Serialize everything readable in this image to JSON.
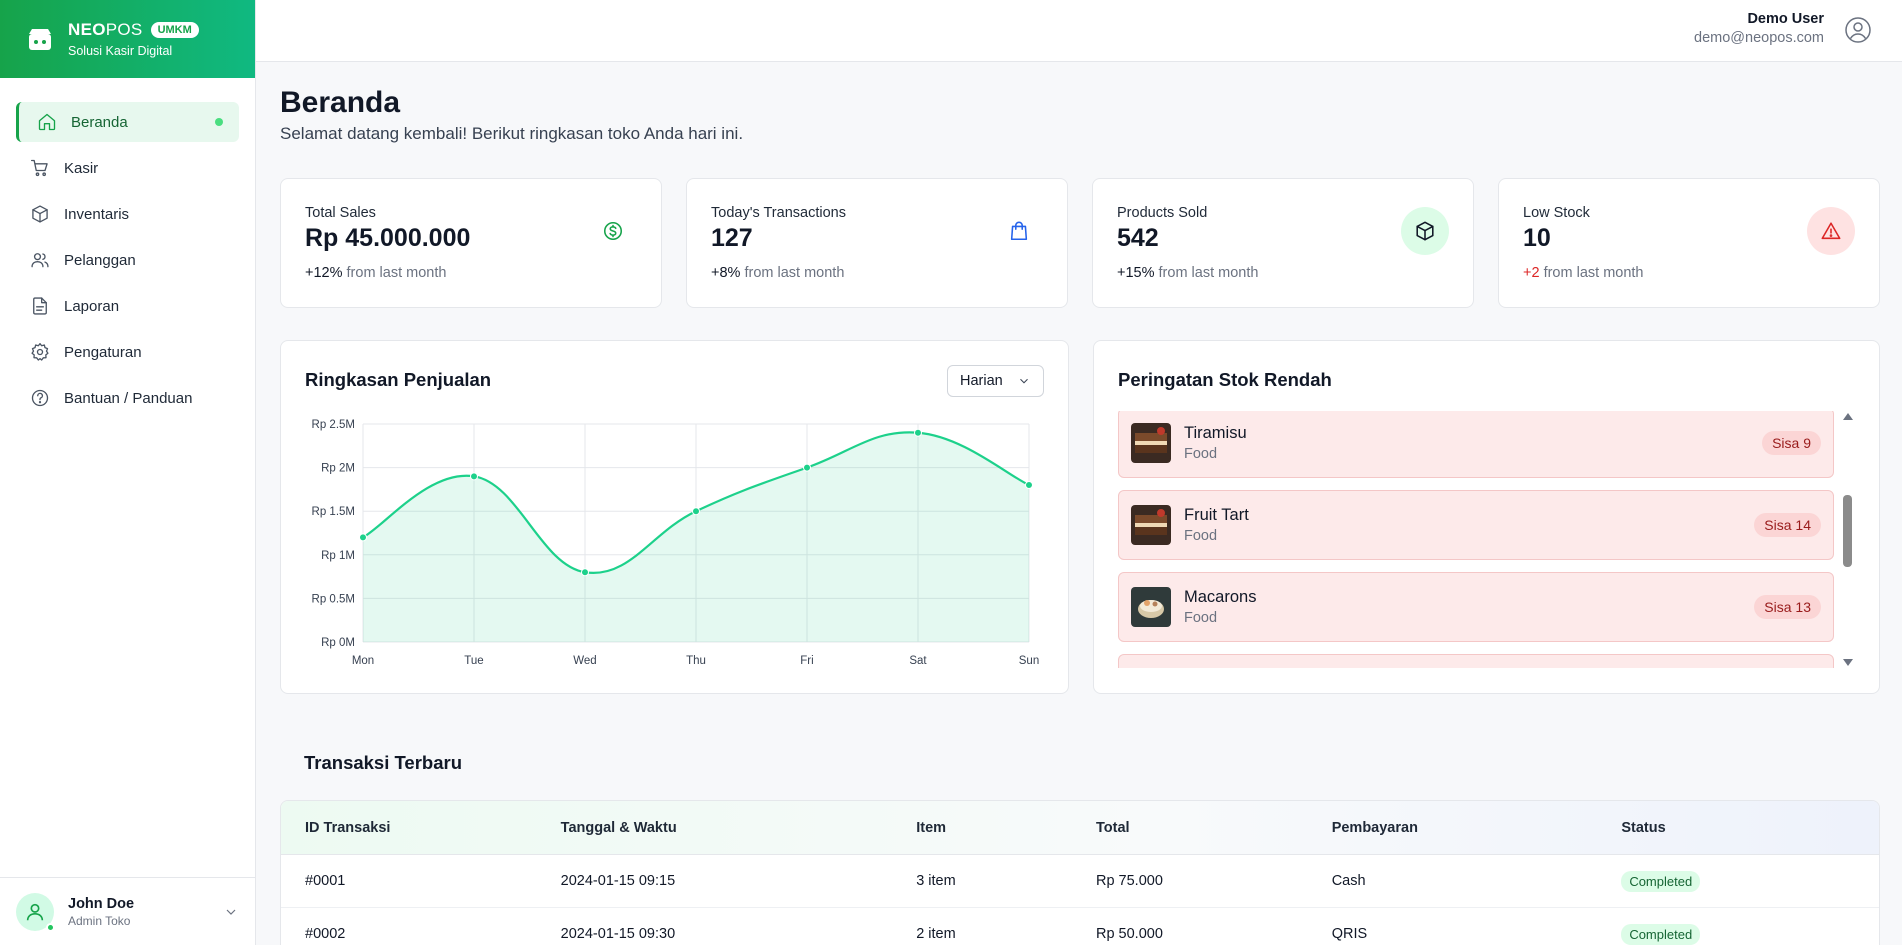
{
  "brand": {
    "name_bold": "NEO",
    "name_light": "POS",
    "badge": "UMKM",
    "tagline": "Solusi Kasir Digital"
  },
  "sidebar": {
    "items": [
      {
        "label": "Beranda",
        "icon": "home-icon",
        "active": true
      },
      {
        "label": "Kasir",
        "icon": "cart-icon"
      },
      {
        "label": "Inventaris",
        "icon": "box-icon"
      },
      {
        "label": "Pelanggan",
        "icon": "users-icon"
      },
      {
        "label": "Laporan",
        "icon": "file-icon"
      },
      {
        "label": "Pengaturan",
        "icon": "gear-icon"
      },
      {
        "label": "Bantuan / Panduan",
        "icon": "help-icon"
      }
    ],
    "user": {
      "name": "John Doe",
      "role": "Admin Toko"
    }
  },
  "header": {
    "user_name": "Demo User",
    "user_email": "demo@neopos.com"
  },
  "page": {
    "title": "Beranda",
    "subtitle": "Selamat datang kembali! Berikut ringkasan toko Anda hari ini."
  },
  "stats": [
    {
      "label": "Total Sales",
      "value": "Rp 45.000.000",
      "delta": "+12%",
      "delta_suffix": " from last month",
      "icon": "dollar-circle-icon"
    },
    {
      "label": "Today's Transactions",
      "value": "127",
      "delta": "+8%",
      "delta_suffix": " from last month",
      "icon": "shopping-bag-icon"
    },
    {
      "label": "Products Sold",
      "value": "542",
      "delta": "+15%",
      "delta_suffix": " from last month",
      "icon": "cube-icon"
    },
    {
      "label": "Low Stock",
      "value": "10",
      "delta": "+2",
      "delta_suffix": " from last month",
      "icon": "warning-icon"
    }
  ],
  "sales_chart": {
    "title": "Ringkasan Penjualan",
    "range_select": "Harian"
  },
  "chart_data": {
    "type": "area",
    "title": "Ringkasan Penjualan",
    "categories": [
      "Mon",
      "Tue",
      "Wed",
      "Thu",
      "Fri",
      "Sat",
      "Sun"
    ],
    "values": [
      1.2,
      1.9,
      0.8,
      1.5,
      2.0,
      2.4,
      1.8
    ],
    "unit": "M",
    "ylim": [
      0,
      2.5
    ],
    "yticks": [
      "Rp 0M",
      "Rp 0.5M",
      "Rp 1M",
      "Rp 1.5M",
      "Rp 2M",
      "Rp 2.5M"
    ],
    "grid": true,
    "color": "#1dd18b"
  },
  "low_stock": {
    "title": "Peringatan Stok Rendah",
    "items": [
      {
        "name": "Tiramisu",
        "category": "Food",
        "badge": "Sisa 9"
      },
      {
        "name": "Fruit Tart",
        "category": "Food",
        "badge": "Sisa 14"
      },
      {
        "name": "Macarons",
        "category": "Food",
        "badge": "Sisa 13"
      }
    ]
  },
  "transactions": {
    "title": "Transaksi Terbaru",
    "columns": [
      "ID Transaksi",
      "Tanggal & Waktu",
      "Item",
      "Total",
      "Pembayaran",
      "Status"
    ],
    "rows": [
      {
        "id": "#0001",
        "datetime": "2024-01-15 09:15",
        "items": "3 item",
        "total": "Rp 75.000",
        "payment": "Cash",
        "status": "Completed"
      },
      {
        "id": "#0002",
        "datetime": "2024-01-15 09:30",
        "items": "2 item",
        "total": "Rp 50.000",
        "payment": "QRIS",
        "status": "Completed"
      }
    ]
  },
  "colors": {
    "accent": "#16a34a",
    "danger": "#dc2626",
    "chart": "#1dd18b"
  }
}
